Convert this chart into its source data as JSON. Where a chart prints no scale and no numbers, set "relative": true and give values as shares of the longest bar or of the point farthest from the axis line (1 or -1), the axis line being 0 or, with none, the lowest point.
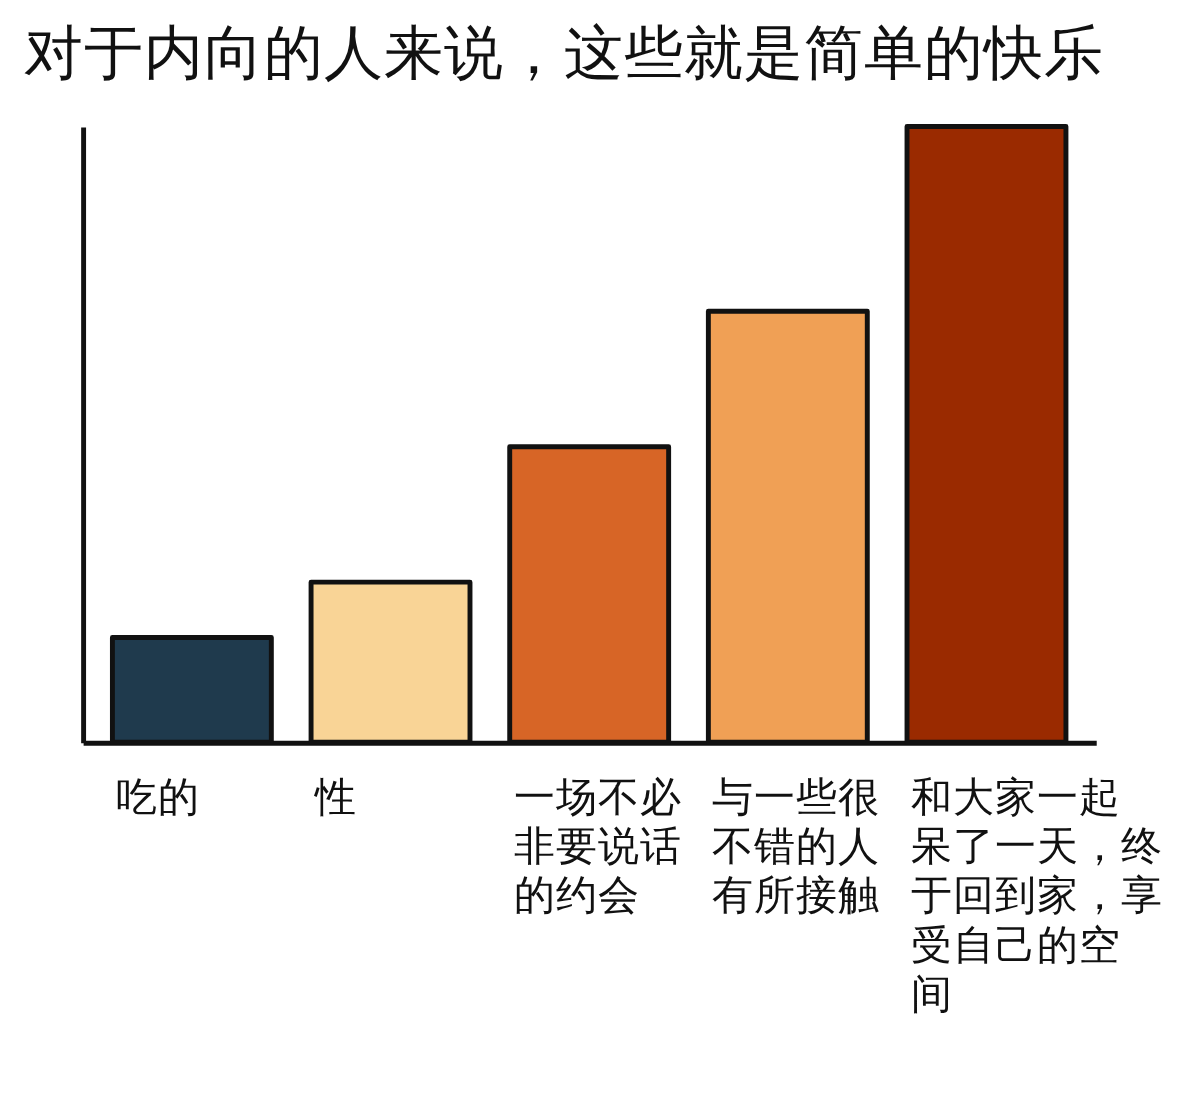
{
  "chart_data": {
    "type": "bar",
    "title": "对于内向的人来说，这些就是简单的快乐",
    "categories": [
      "吃的",
      "性",
      "一场不必非要说话的约会",
      "与一些很不错的人有所接触",
      "和大家一起呆了一天，终于回到家，享受自己的空间"
    ],
    "values": [
      0.17,
      0.26,
      0.48,
      0.7,
      1
    ],
    "colors": [
      "#1f3a4d",
      "#f9d496",
      "#d76526",
      "#f0a055",
      "#9a2a00"
    ],
    "relative": true
  }
}
